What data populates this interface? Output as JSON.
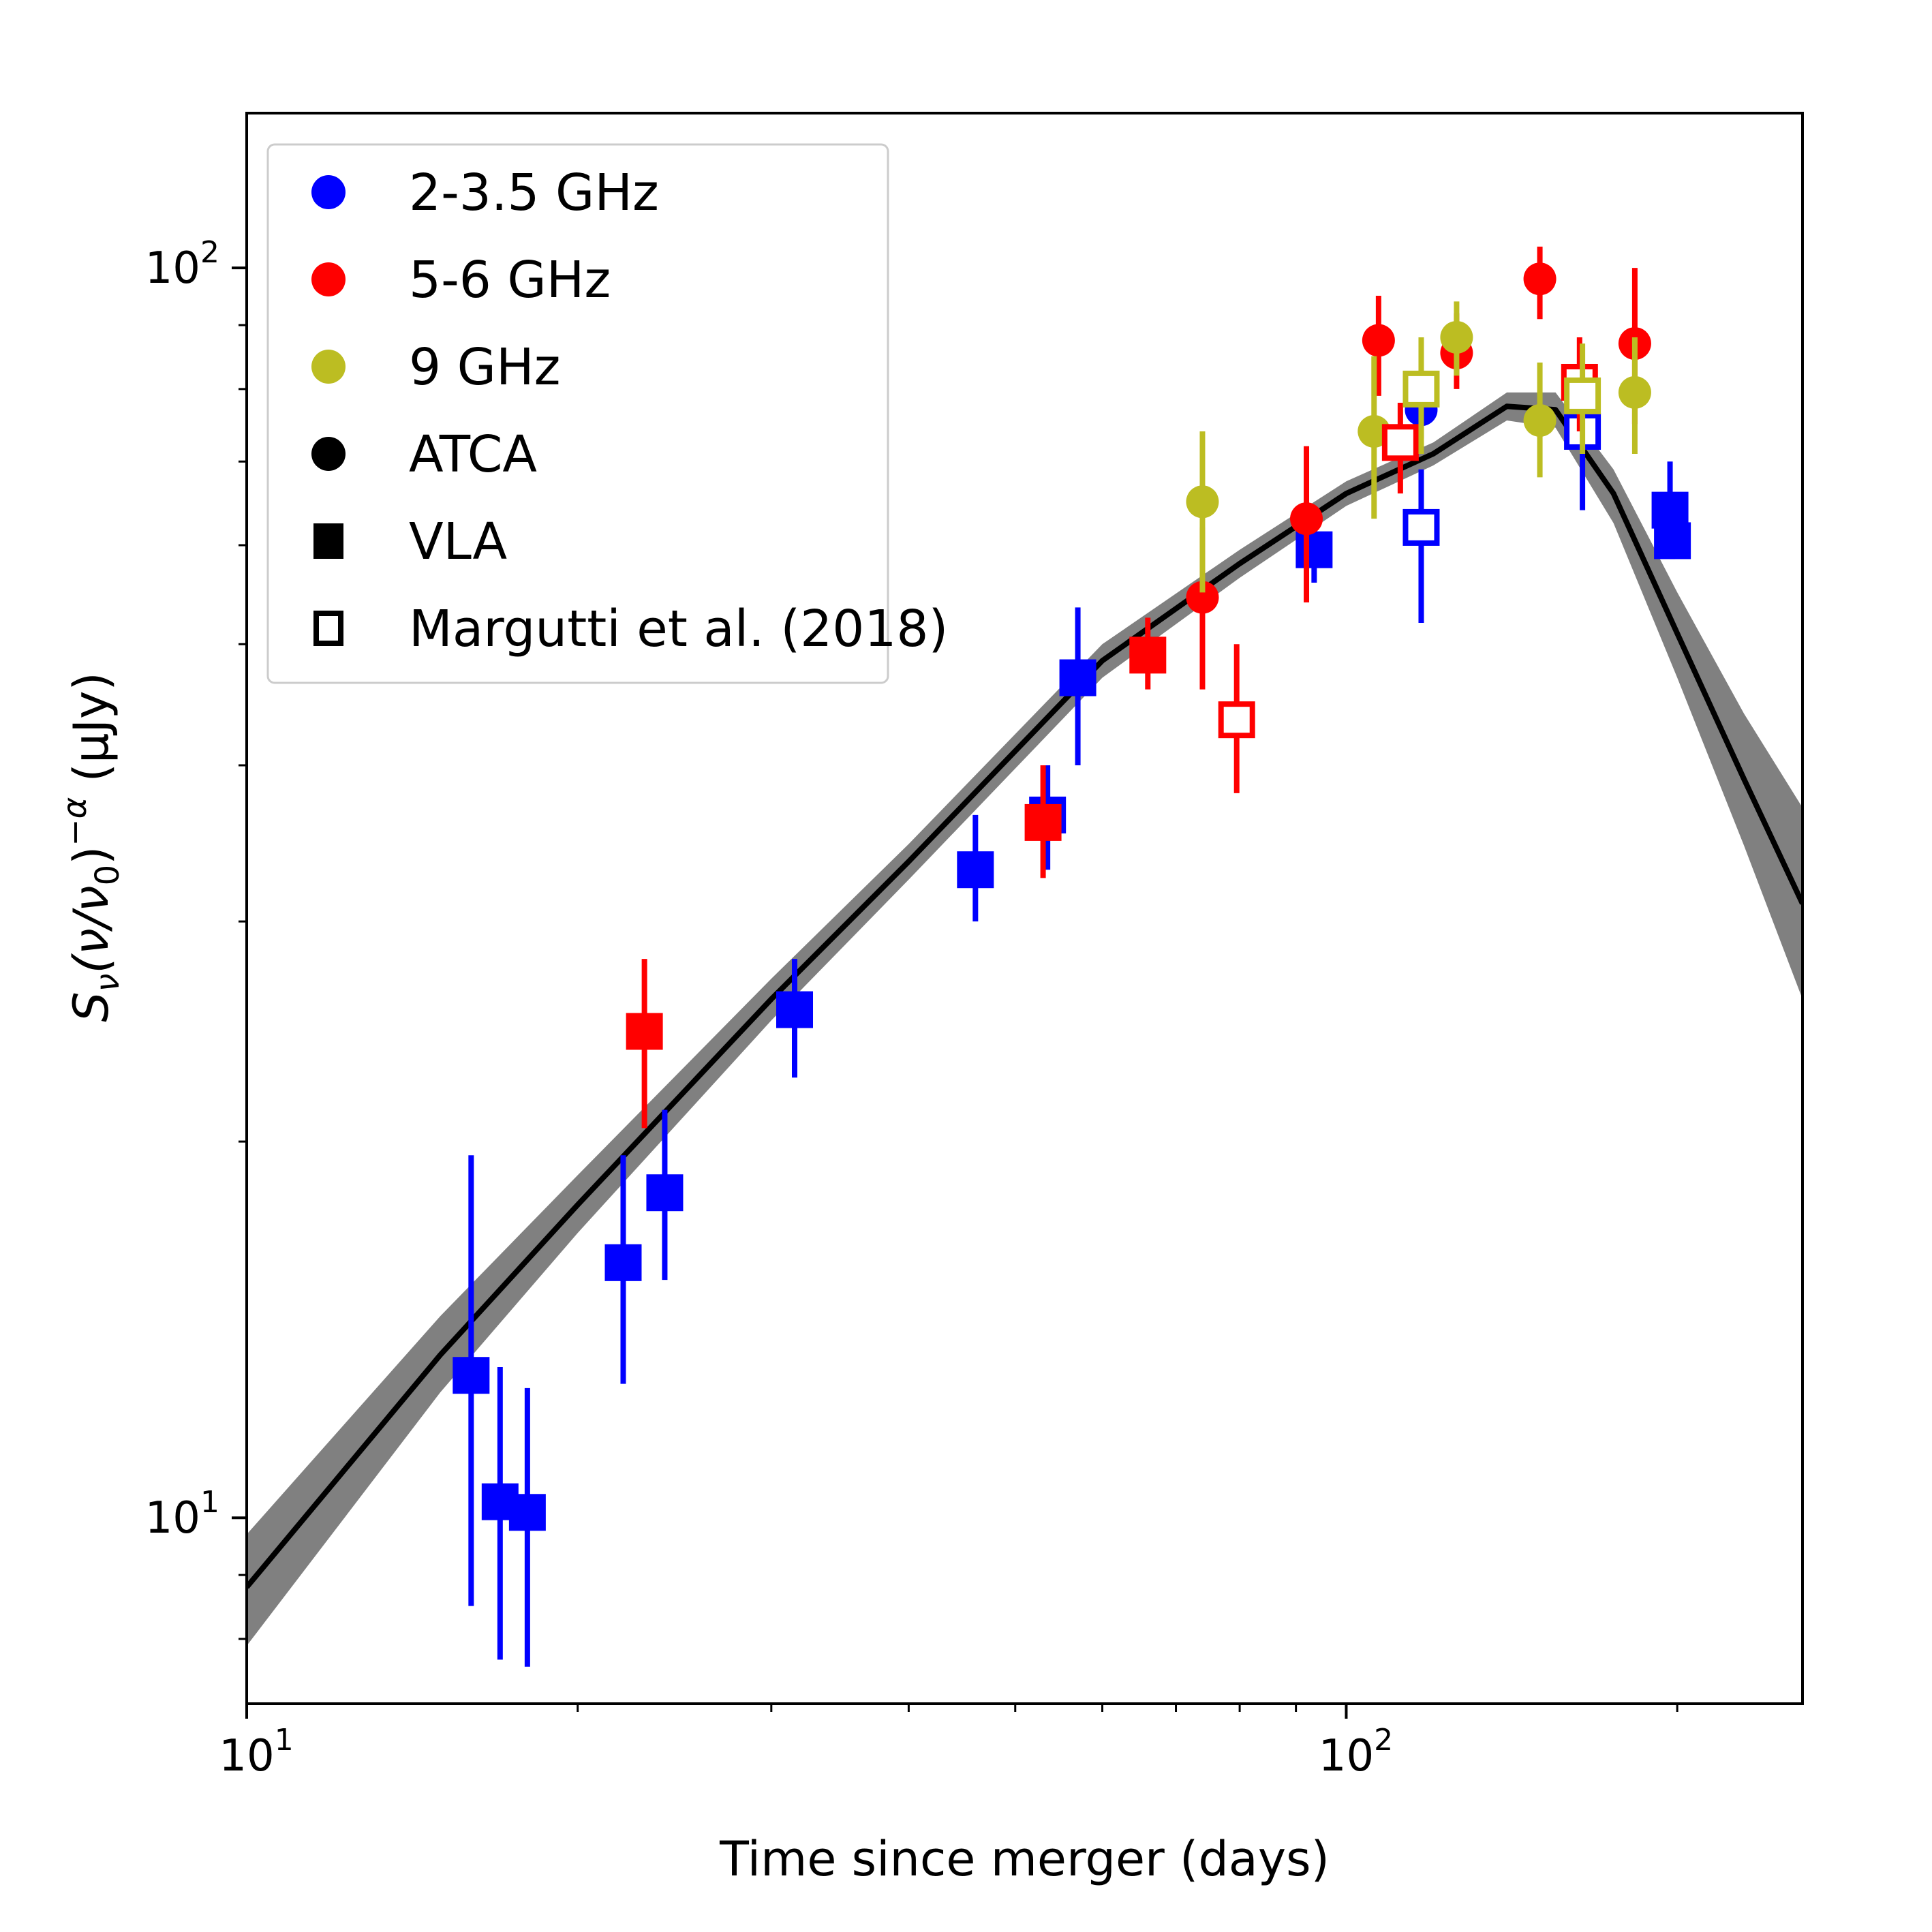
{
  "chart_data": {
    "type": "scatter",
    "xlabel": "Time since merger (days)",
    "ylabel": "S_ν(ν/ν_0)^(-α) (μJy)",
    "ylabel_parts": {
      "main": "S",
      "sub": "ν",
      "mid": "(ν/ν",
      "sub0": "0",
      "close": ")",
      "sup": "−α",
      "unit": "(μJy)"
    },
    "x_scale": "log",
    "y_scale": "log",
    "xlim": [
      10,
      260
    ],
    "ylim": [
      7.1,
      133
    ],
    "x_ticks": [
      {
        "value": 10,
        "base": "10",
        "exp": "1"
      },
      {
        "value": 100,
        "base": "10",
        "exp": "2"
      }
    ],
    "y_ticks": [
      {
        "value": 10,
        "base": "10",
        "exp": "1"
      },
      {
        "value": 100,
        "base": "10",
        "exp": "2"
      }
    ],
    "grid": false,
    "legend_position": "top-left",
    "legend": [
      {
        "label": "2-3.5 GHz",
        "marker": "circle",
        "color": "#0000ff",
        "filled": true
      },
      {
        "label": "5-6 GHz",
        "marker": "circle",
        "color": "#ff0000",
        "filled": true
      },
      {
        "label": "9 GHz",
        "marker": "circle",
        "color": "#bcbd22",
        "filled": true
      },
      {
        "label": "ATCA",
        "marker": "circle",
        "color": "#000000",
        "filled": true
      },
      {
        "label": "VLA",
        "marker": "square",
        "color": "#000000",
        "filled": true
      },
      {
        "label": "Margutti et al. (2018)",
        "marker": "square",
        "color": "#000000",
        "filled": false
      }
    ],
    "colors": {
      "band_2_3_5": "#0000ff",
      "band_5_6": "#ff0000",
      "band_9": "#bcbd22",
      "model_line": "#000000",
      "model_band": "#808080"
    },
    "model": {
      "x": [
        10,
        15,
        20,
        30,
        40,
        60,
        80,
        100,
        120,
        140,
        155,
        175,
        200,
        230,
        260
      ],
      "y": [
        8.8,
        13.5,
        17.8,
        26.0,
        33.5,
        48.5,
        58.0,
        66.0,
        71.0,
        77.5,
        77.0,
        66.0,
        51.0,
        39.0,
        31.0
      ],
      "lower": [
        7.9,
        12.6,
        16.9,
        25.0,
        32.4,
        47.0,
        56.5,
        64.5,
        69.5,
        75.5,
        74.5,
        62.5,
        47.0,
        34.5,
        26.0
      ],
      "upper": [
        9.7,
        14.5,
        18.8,
        27.0,
        34.6,
        50.0,
        59.5,
        67.5,
        72.5,
        79.5,
        79.5,
        69.0,
        55.0,
        44.0,
        37.0
      ]
    },
    "series": [
      {
        "name": "2-3.5 GHz",
        "band": "2-3.5 GHz",
        "telescope": "VLA",
        "marker": "square",
        "filled": true,
        "color": "#0000ff",
        "points": [
          {
            "x": 16.0,
            "y": 13.0,
            "ylo": 8.5,
            "yhi": 19.5
          },
          {
            "x": 17.0,
            "y": 10.3,
            "ylo": 7.7,
            "yhi": 13.2
          },
          {
            "x": 18.0,
            "y": 10.1,
            "ylo": 7.6,
            "yhi": 12.7
          },
          {
            "x": 22.0,
            "y": 16.0,
            "ylo": 12.8,
            "yhi": 19.5
          },
          {
            "x": 24.0,
            "y": 18.2,
            "ylo": 15.5,
            "yhi": 21.2
          },
          {
            "x": 31.5,
            "y": 25.5,
            "ylo": 22.5,
            "yhi": 28.0
          },
          {
            "x": 46.0,
            "y": 33.0,
            "ylo": 30.0,
            "yhi": 36.5
          },
          {
            "x": 53.5,
            "y": 36.5,
            "ylo": 33.0,
            "yhi": 40.0
          },
          {
            "x": 57.0,
            "y": 47.0,
            "ylo": 40.0,
            "yhi": 53.5
          },
          {
            "x": 93.5,
            "y": 59.5,
            "ylo": 56.0,
            "yhi": 63.0
          },
          {
            "x": 197.0,
            "y": 64.0,
            "ylo": 60.0,
            "yhi": 70.0
          },
          {
            "x": 198.0,
            "y": 60.5,
            "ylo": 58.5,
            "yhi": 66.0
          }
        ]
      },
      {
        "name": "2-3.5 GHz",
        "band": "2-3.5 GHz",
        "telescope": "ATCA",
        "marker": "circle",
        "filled": true,
        "color": "#0000ff",
        "points": [
          {
            "x": 117.0,
            "y": 77.0,
            "ylo": 73.0,
            "yhi": 81.0
          }
        ]
      },
      {
        "name": "5-6 GHz",
        "band": "5-6 GHz",
        "telescope": "VLA",
        "marker": "square",
        "filled": true,
        "color": "#ff0000",
        "points": [
          {
            "x": 23.0,
            "y": 24.5,
            "ylo": 20.5,
            "yhi": 28.0
          },
          {
            "x": 53.0,
            "y": 36.0,
            "ylo": 32.5,
            "yhi": 40.0
          },
          {
            "x": 66.0,
            "y": 49.0,
            "ylo": 46.0,
            "yhi": 52.5
          }
        ]
      },
      {
        "name": "5-6 GHz",
        "band": "5-6 GHz",
        "telescope": "ATCA",
        "marker": "circle",
        "filled": true,
        "color": "#ff0000",
        "points": [
          {
            "x": 74.0,
            "y": 54.5,
            "ylo": 46.0,
            "yhi": 62.0
          },
          {
            "x": 92.0,
            "y": 63.0,
            "ylo": 54.0,
            "yhi": 72.0
          },
          {
            "x": 107.0,
            "y": 87.5,
            "ylo": 79.0,
            "yhi": 95.0
          },
          {
            "x": 126.0,
            "y": 85.5,
            "ylo": 80.0,
            "yhi": 92.0
          },
          {
            "x": 150.0,
            "y": 98.0,
            "ylo": 91.0,
            "yhi": 104.0
          },
          {
            "x": 183.0,
            "y": 87.0,
            "ylo": 75.0,
            "yhi": 100.0
          }
        ]
      },
      {
        "name": "9 GHz",
        "band": "9 GHz",
        "telescope": "ATCA",
        "marker": "circle",
        "filled": true,
        "color": "#bcbd22",
        "points": [
          {
            "x": 74.0,
            "y": 65.0,
            "ylo": 55.0,
            "yhi": 74.0
          },
          {
            "x": 106.0,
            "y": 74.0,
            "ylo": 63.0,
            "yhi": 85.0
          },
          {
            "x": 126.0,
            "y": 88.0,
            "ylo": 82.0,
            "yhi": 94.0
          },
          {
            "x": 150.0,
            "y": 75.5,
            "ylo": 68.0,
            "yhi": 84.0
          },
          {
            "x": 183.0,
            "y": 79.5,
            "ylo": 71.0,
            "yhi": 88.0
          }
        ]
      },
      {
        "name": "Margutti et al. (2018)",
        "band": "2-3.5 GHz",
        "telescope": "Margutti et al. (2018)",
        "marker": "square",
        "filled": false,
        "color": "#0000ff",
        "points": [
          {
            "x": 117.0,
            "y": 62.0,
            "ylo": 52.0,
            "yhi": 69.0
          },
          {
            "x": 164.0,
            "y": 74.0,
            "ylo": 64.0,
            "yhi": 80.0
          }
        ]
      },
      {
        "name": "Margutti et al. (2018)",
        "band": "5-6 GHz",
        "telescope": "Margutti et al. (2018)",
        "marker": "square",
        "filled": false,
        "color": "#ff0000",
        "points": [
          {
            "x": 79.5,
            "y": 43.5,
            "ylo": 38.0,
            "yhi": 50.0
          },
          {
            "x": 112.0,
            "y": 72.5,
            "ylo": 66.0,
            "yhi": 78.0
          },
          {
            "x": 163.0,
            "y": 81.0,
            "ylo": 74.0,
            "yhi": 88.0
          }
        ]
      },
      {
        "name": "Margutti et al. (2018)",
        "band": "9 GHz",
        "telescope": "Margutti et al. (2018)",
        "marker": "square",
        "filled": false,
        "color": "#bcbd22",
        "points": [
          {
            "x": 117.0,
            "y": 80.0,
            "ylo": 71.0,
            "yhi": 88.0
          },
          {
            "x": 164.0,
            "y": 79.0,
            "ylo": 71.0,
            "yhi": 87.0
          }
        ]
      }
    ]
  }
}
